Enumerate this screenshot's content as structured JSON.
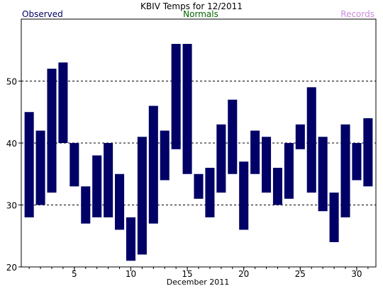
{
  "chart_data": {
    "type": "bar",
    "subtype": "floating-range",
    "title": "KBIV Temps for 12/2011",
    "legend": [
      "Observed",
      "Normals",
      "Records"
    ],
    "xlabel": "December 2011",
    "x_ticks": [
      5,
      10,
      15,
      20,
      25,
      30
    ],
    "y_ticks": [
      20,
      30,
      40,
      50
    ],
    "xlim": [
      0.3,
      31.7
    ],
    "ylim": [
      20,
      60
    ],
    "grid": "horizontal dashed at y ticks",
    "series": [
      {
        "name": "Observed",
        "days": [
          1,
          2,
          3,
          4,
          5,
          6,
          7,
          8,
          9,
          10,
          11,
          12,
          13,
          14,
          15,
          16,
          17,
          18,
          19,
          20,
          21,
          22,
          23,
          24,
          25,
          26,
          27,
          28,
          29,
          30,
          31
        ],
        "low": [
          28,
          30,
          32,
          40,
          33,
          27,
          28,
          28,
          26,
          21,
          22,
          27,
          34,
          39,
          35,
          31,
          28,
          32,
          35,
          26,
          35,
          32,
          30,
          31,
          39,
          32,
          29,
          24,
          28,
          34,
          33
        ],
        "high": [
          45,
          42,
          52,
          53,
          40,
          33,
          38,
          40,
          35,
          28,
          41,
          46,
          42,
          56,
          56,
          35,
          36,
          43,
          47,
          37,
          42,
          41,
          36,
          40,
          43,
          49,
          41,
          32,
          43,
          40,
          44
        ]
      }
    ],
    "colors": {
      "bars": "#000066",
      "title": "#000000",
      "observed": "#000066",
      "normals": "#006600",
      "records": "#c98bd9",
      "grid": "#000000",
      "axis": "#000000"
    }
  }
}
